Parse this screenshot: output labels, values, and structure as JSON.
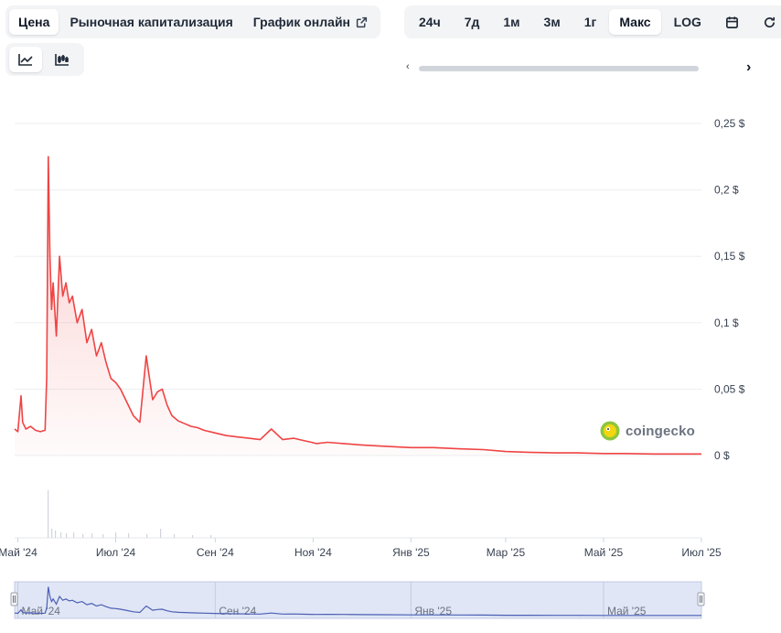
{
  "tabs": {
    "price": "Цена",
    "market_cap": "Рыночная капитализация",
    "live_chart": "График онлайн"
  },
  "ranges": {
    "d1": "24ч",
    "d7": "7д",
    "m1": "1м",
    "m3": "3м",
    "y1": "1г",
    "max": "Макс",
    "log": "LOG"
  },
  "icons": {
    "external": "external-link-icon",
    "calendar": "calendar-icon",
    "refresh": "refresh-icon",
    "line_chart": "line-chart-icon",
    "candle_chart": "candlestick-icon",
    "scroll_left": "chevron-left-icon",
    "scroll_right": "chevron-right-icon"
  },
  "watermark": "coingecko",
  "colors": {
    "price_line": "#ef4444",
    "navigator_line": "#4b5fb5",
    "navigator_fill": "#e0e6f5"
  },
  "chart_data": {
    "type": "line",
    "ylim": [
      0,
      0.25
    ],
    "y_ticks": [
      0,
      0.05,
      0.1,
      0.15,
      0.2,
      0.25
    ],
    "y_tick_labels": [
      "0 $",
      "0,05 $",
      "0,1 $",
      "0,15 $",
      "0,2 $",
      "0,25 $"
    ],
    "x_tick_labels": [
      "Май '24",
      "Июл '24",
      "Сен '24",
      "Ноя '24",
      "Янв '25",
      "Мар '25",
      "Май '25",
      "Июл '25"
    ],
    "x_tick_dates": [
      "2024-05-01",
      "2024-07-01",
      "2024-09-01",
      "2024-11-01",
      "2025-01-01",
      "2025-03-01",
      "2025-05-01",
      "2025-07-01"
    ],
    "navigator_labels": [
      "Май '24",
      "Сен '24",
      "Янв '25",
      "Май '25"
    ],
    "navigator_dates": [
      "2024-05-01",
      "2024-09-01",
      "2025-01-01",
      "2025-05-01"
    ],
    "grid": true,
    "legend": "none",
    "series": [
      {
        "x": [
          "2024-04-29",
          "2024-05-01",
          "2024-05-03",
          "2024-05-04",
          "2024-05-06",
          "2024-05-09",
          "2024-05-12",
          "2024-05-15",
          "2024-05-18",
          "2024-05-19",
          "2024-05-20",
          "2024-05-21",
          "2024-05-22",
          "2024-05-23",
          "2024-05-25",
          "2024-05-27",
          "2024-05-29",
          "2024-05-31",
          "2024-06-02",
          "2024-06-04",
          "2024-06-07",
          "2024-06-10",
          "2024-06-13",
          "2024-06-16",
          "2024-06-19",
          "2024-06-22",
          "2024-06-25",
          "2024-06-28",
          "2024-07-01",
          "2024-07-04",
          "2024-07-08",
          "2024-07-12",
          "2024-07-16",
          "2024-07-20",
          "2024-07-24",
          "2024-07-27",
          "2024-07-30",
          "2024-08-02",
          "2024-08-05",
          "2024-08-09",
          "2024-08-13",
          "2024-08-17",
          "2024-08-21",
          "2024-08-25",
          "2024-09-01",
          "2024-09-08",
          "2024-09-15",
          "2024-09-22",
          "2024-09-29",
          "2024-10-06",
          "2024-10-13",
          "2024-10-20",
          "2024-10-27",
          "2024-10-31",
          "2024-11-03",
          "2024-11-10",
          "2024-11-20",
          "2024-12-01",
          "2024-12-15",
          "2025-01-01",
          "2025-01-15",
          "2025-02-01",
          "2025-02-15",
          "2025-03-01",
          "2025-03-15",
          "2025-04-01",
          "2025-04-15",
          "2025-05-01",
          "2025-05-15",
          "2025-06-01",
          "2025-06-15",
          "2025-07-01"
        ],
        "values": [
          0.02,
          0.018,
          0.045,
          0.025,
          0.02,
          0.022,
          0.019,
          0.018,
          0.019,
          0.06,
          0.225,
          0.15,
          0.11,
          0.13,
          0.09,
          0.15,
          0.12,
          0.13,
          0.115,
          0.12,
          0.1,
          0.11,
          0.085,
          0.095,
          0.075,
          0.085,
          0.07,
          0.058,
          0.055,
          0.05,
          0.04,
          0.03,
          0.025,
          0.075,
          0.042,
          0.048,
          0.05,
          0.038,
          0.03,
          0.026,
          0.024,
          0.022,
          0.021,
          0.019,
          0.017,
          0.015,
          0.014,
          0.013,
          0.012,
          0.02,
          0.012,
          0.013,
          0.011,
          0.01,
          0.009,
          0.01,
          0.009,
          0.008,
          0.007,
          0.006,
          0.006,
          0.005,
          0.0045,
          0.003,
          0.0025,
          0.002,
          0.002,
          0.0015,
          0.0015,
          0.0012,
          0.0012,
          0.0012
        ]
      }
    ]
  }
}
